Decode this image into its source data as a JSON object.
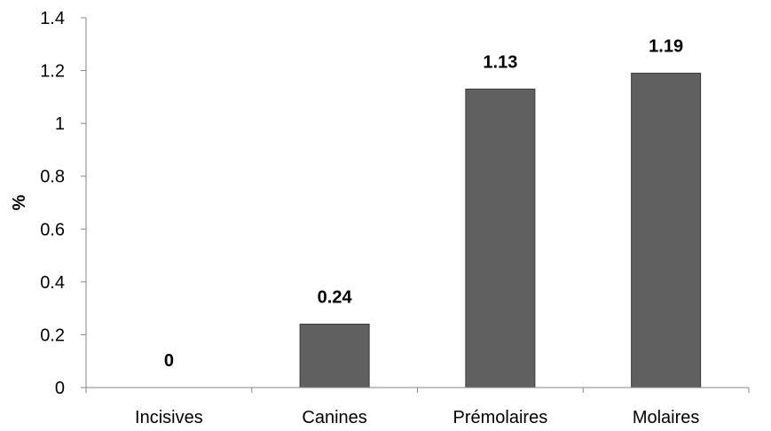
{
  "chart_data": {
    "type": "bar",
    "categories": [
      "Incisives",
      "Canines",
      "Prémolaires",
      "Molaires"
    ],
    "values": [
      0,
      0.24,
      1.13,
      1.19
    ],
    "data_labels": [
      "0",
      "0.24",
      "1.13",
      "1.19"
    ],
    "title": "",
    "xlabel": "",
    "ylabel": "%",
    "ylim": [
      0,
      1.4
    ],
    "yticks": [
      0,
      0.2,
      0.4,
      0.6,
      0.8,
      1,
      1.2,
      1.4
    ],
    "ytick_labels": [
      "0",
      "0.2",
      "0.4",
      "0.6",
      "0.8",
      "1",
      "1.2",
      "1.4"
    ],
    "grid": false,
    "legend": "none",
    "bar_color": "#606060",
    "axis_color": "#868686"
  }
}
